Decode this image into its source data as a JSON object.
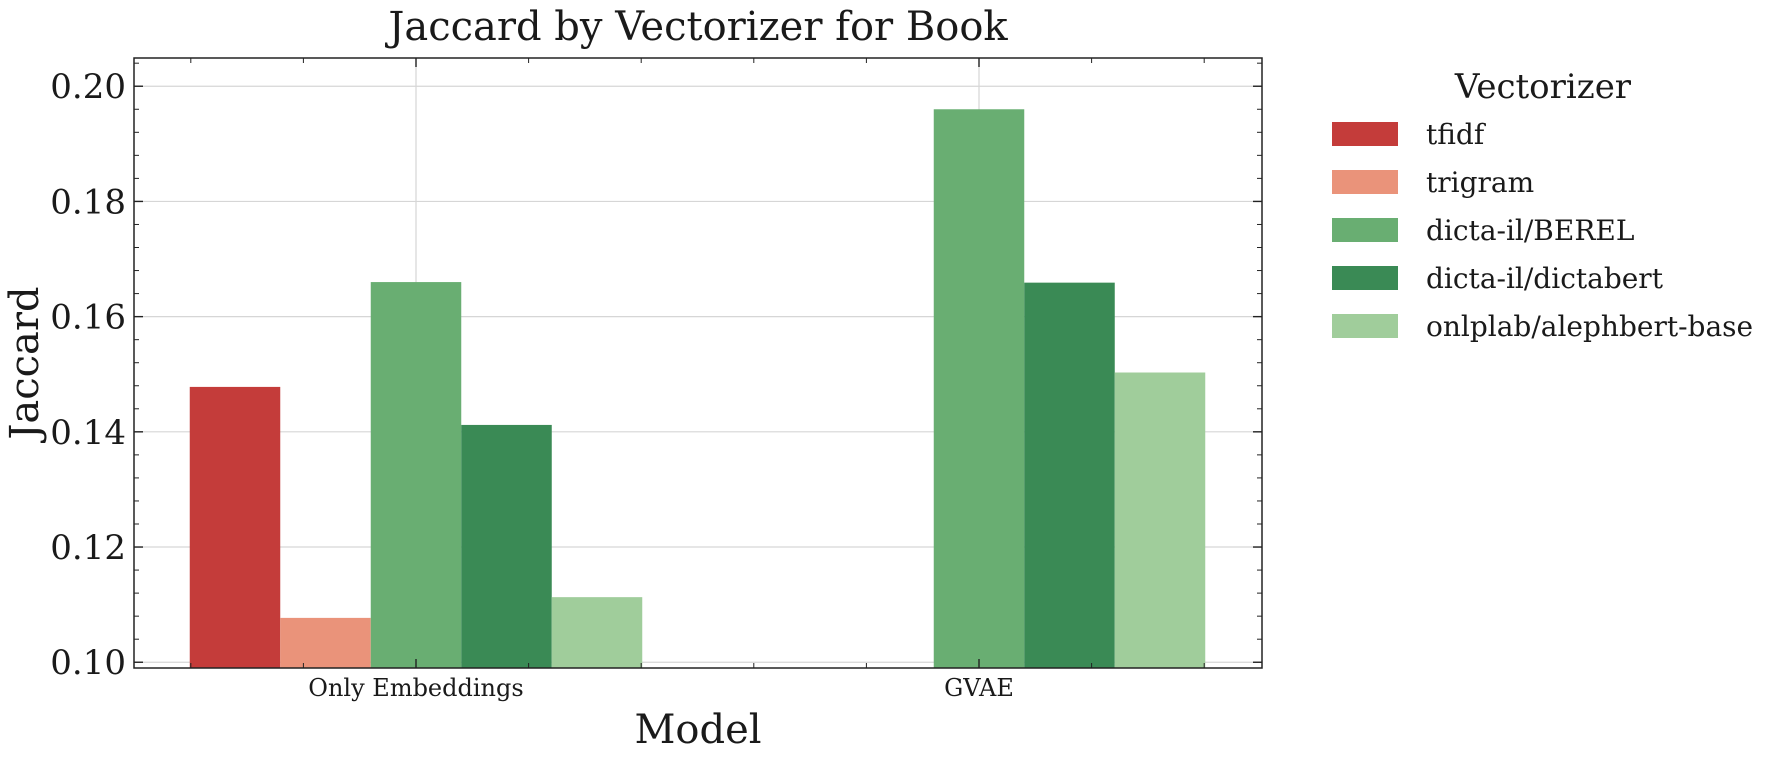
{
  "chart_data": {
    "type": "bar",
    "title": "Jaccard by Vectorizer for Book",
    "xlabel": "Model",
    "ylabel": "Jaccard",
    "categories": [
      "Only Embeddings",
      "GVAE"
    ],
    "ylim": [
      0.099,
      0.2049
    ],
    "yticks": [
      "0.10",
      "0.12",
      "0.14",
      "0.16",
      "0.18",
      "0.20"
    ],
    "grid": true,
    "legend": {
      "title": "Vectorizer",
      "placement": "outside right, top"
    },
    "series": [
      {
        "name": "tfidf",
        "color": "#c43c3a",
        "values": [
          0.1478,
          null
        ]
      },
      {
        "name": "trigram",
        "color": "#ea937a",
        "values": [
          0.1077,
          null
        ]
      },
      {
        "name": "dicta-il/BEREL",
        "color": "#69ae72",
        "values": [
          0.166,
          0.196
        ]
      },
      {
        "name": "dicta-il/dictabert",
        "color": "#3a8a55",
        "values": [
          0.1412,
          0.1659
        ]
      },
      {
        "name": "onlplab/alephbert-base",
        "color": "#a0cd9b",
        "values": [
          0.1113,
          0.1503
        ]
      }
    ]
  }
}
